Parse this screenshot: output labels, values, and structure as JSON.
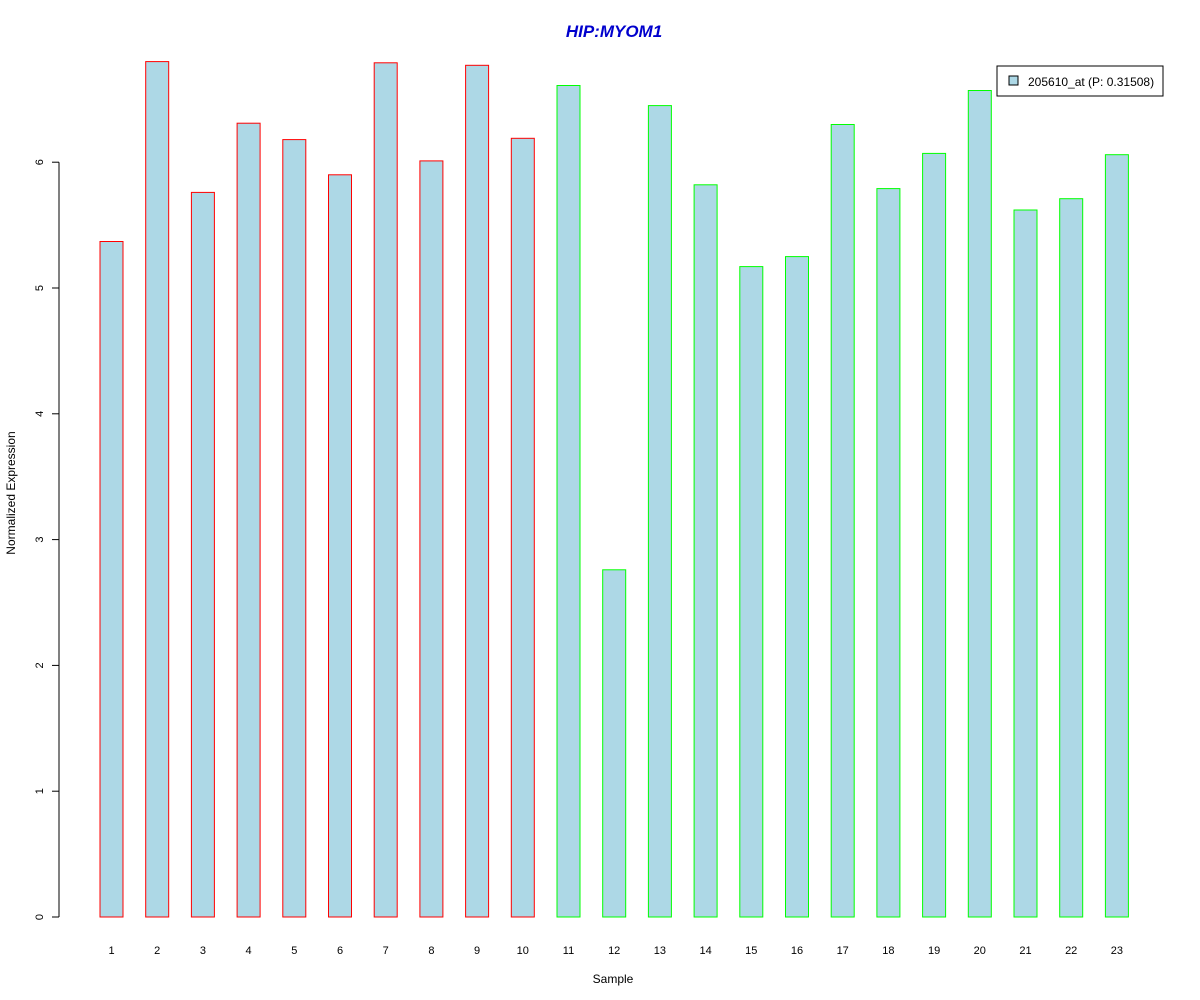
{
  "chart_data": {
    "type": "bar",
    "title": "HIP:MYOM1",
    "xlabel": "Sample",
    "ylabel": "Normalized Expression",
    "categories": [
      "1",
      "2",
      "3",
      "4",
      "5",
      "6",
      "7",
      "8",
      "9",
      "10",
      "11",
      "12",
      "13",
      "14",
      "15",
      "16",
      "17",
      "18",
      "19",
      "20",
      "21",
      "22",
      "23"
    ],
    "series": [
      {
        "name": "205610_at (P: 0.31508)",
        "values": [
          5.37,
          6.8,
          5.76,
          6.31,
          6.18,
          5.9,
          6.79,
          6.01,
          6.77,
          6.19,
          6.61,
          2.76,
          6.45,
          5.82,
          5.17,
          5.25,
          6.3,
          5.79,
          6.07,
          6.57,
          5.62,
          5.71,
          6.06
        ]
      }
    ],
    "group_borders": [
      "#ff0000",
      "#ff0000",
      "#ff0000",
      "#ff0000",
      "#ff0000",
      "#ff0000",
      "#ff0000",
      "#ff0000",
      "#ff0000",
      "#ff0000",
      "#00ff00",
      "#00ff00",
      "#00ff00",
      "#00ff00",
      "#00ff00",
      "#00ff00",
      "#00ff00",
      "#00ff00",
      "#00ff00",
      "#00ff00",
      "#00ff00",
      "#00ff00",
      "#00ff00"
    ],
    "yticks": [
      "0",
      "1",
      "2",
      "3",
      "4",
      "5",
      "6"
    ],
    "ylim": [
      0,
      6.85
    ],
    "grid": false,
    "legend_position": "top-right",
    "bar_fill": "#add8e6",
    "title_color": "#0000cd"
  }
}
